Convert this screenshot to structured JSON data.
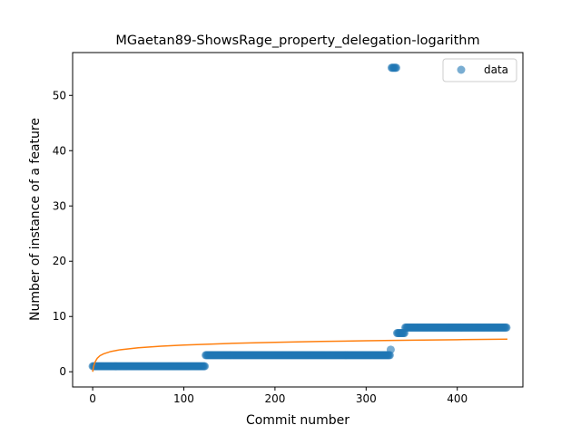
{
  "chart_data": {
    "type": "scatter",
    "title": "MGaetan89-ShowsRage_property_delegation-logarithm",
    "xlabel": "Commit number",
    "ylabel": "Number of instance of a feature",
    "xlim": [
      -22,
      472
    ],
    "ylim": [
      -2.75,
      57.75
    ],
    "xticks": [
      0,
      100,
      200,
      300,
      400
    ],
    "yticks": [
      0,
      10,
      20,
      30,
      40,
      50
    ],
    "grid": false,
    "legend": {
      "position": "top-right",
      "entries": [
        "data"
      ]
    },
    "colors": {
      "data": "#1f77b4",
      "fit": "#ff7f0e"
    },
    "series": [
      {
        "name": "data",
        "kind": "scatter",
        "segments": [
          {
            "x_start": 0,
            "x_end": 123,
            "y": 1
          },
          {
            "x_start": 124,
            "x_end": 326,
            "y": 3
          },
          {
            "x_start": 327,
            "x_end": 327,
            "y": 4
          },
          {
            "x_start": 328,
            "x_end": 333,
            "y": 55
          },
          {
            "x_start": 334,
            "x_end": 342,
            "y": 7
          },
          {
            "x_start": 343,
            "x_end": 454,
            "y": 8
          }
        ]
      },
      {
        "kind": "line",
        "model": "logarithmic",
        "points": [
          [
            0,
            0
          ],
          [
            1,
            0.96
          ],
          [
            2,
            1.49
          ],
          [
            3,
            1.89
          ],
          [
            5,
            2.44
          ],
          [
            8,
            2.91
          ],
          [
            12,
            3.25
          ],
          [
            20,
            3.67
          ],
          [
            30,
            3.98
          ],
          [
            50,
            4.35
          ],
          [
            75,
            4.63
          ],
          [
            100,
            4.84
          ],
          [
            150,
            5.13
          ],
          [
            200,
            5.33
          ],
          [
            250,
            5.48
          ],
          [
            300,
            5.61
          ],
          [
            350,
            5.71
          ],
          [
            400,
            5.8
          ],
          [
            455,
            5.9
          ]
        ]
      }
    ]
  }
}
